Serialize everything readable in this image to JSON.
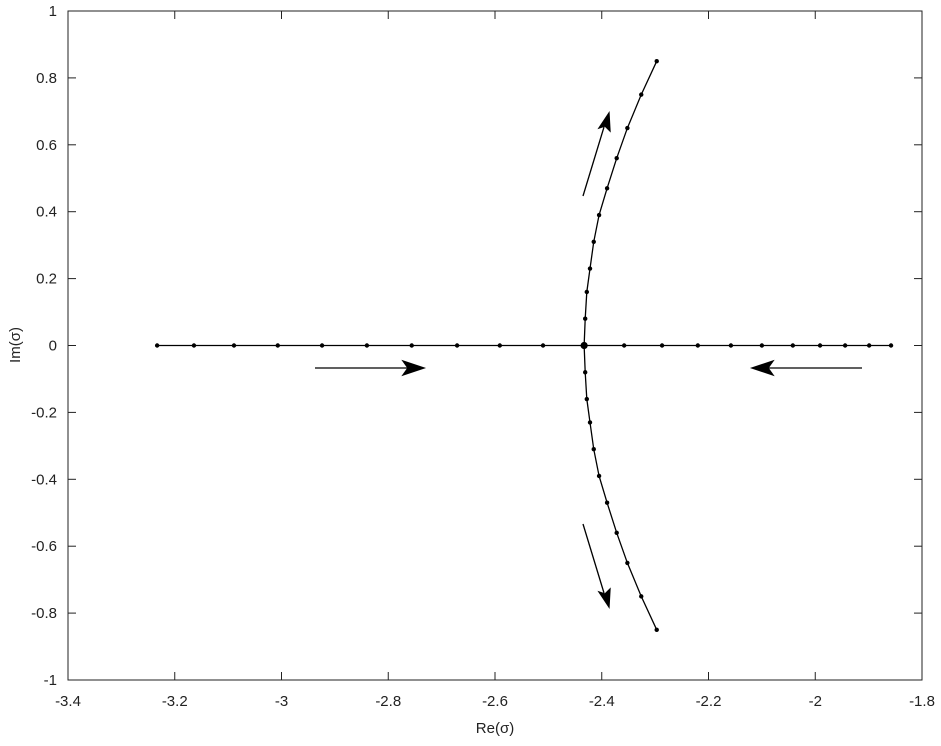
{
  "chart_data": {
    "type": "line",
    "xlabel": "Re(σ)",
    "ylabel": "Im(σ)",
    "xlim": [
      -3.4,
      -1.8
    ],
    "xticks": [
      -3.4,
      -3.2,
      -3,
      -2.8,
      -2.6,
      -2.4,
      -2.2,
      -2,
      -1.8
    ],
    "ylim": [
      -1,
      1
    ],
    "yticks": [
      -1,
      -0.8,
      -0.6,
      -0.4,
      -0.2,
      0,
      0.2,
      0.4,
      0.6,
      0.8,
      1
    ],
    "grid": false,
    "series": [
      {
        "color": "#000000",
        "x": [
          -3.233,
          -3.164,
          -3.089,
          -3.007,
          -2.924,
          -2.84,
          -2.756,
          -2.671,
          -2.591,
          -2.51,
          -2.433,
          -2.358,
          -2.287,
          -2.22,
          -2.158,
          -2.1,
          -2.042,
          -1.991,
          -1.944,
          -1.899,
          -1.858
        ],
        "values": [
          0,
          0,
          0,
          0,
          0,
          0,
          0,
          0,
          0,
          0,
          0,
          0,
          0,
          0,
          0,
          0,
          0,
          0,
          0,
          0,
          0
        ]
      },
      {
        "color": "#000000",
        "x": [
          -2.433,
          -2.431,
          -2.428,
          -2.422,
          -2.415,
          -2.405,
          -2.39,
          -2.372,
          -2.352,
          -2.326,
          -2.297
        ],
        "values": [
          0,
          0.08,
          0.16,
          0.23,
          0.31,
          0.39,
          0.47,
          0.56,
          0.65,
          0.75,
          0.85
        ]
      },
      {
        "color": "#000000",
        "x": [
          -2.433,
          -2.431,
          -2.428,
          -2.422,
          -2.415,
          -2.405,
          -2.39,
          -2.372,
          -2.352,
          -2.326,
          -2.297
        ],
        "values": [
          0,
          -0.08,
          -0.16,
          -0.23,
          -0.31,
          -0.39,
          -0.47,
          -0.56,
          -0.65,
          -0.75,
          -0.85
        ]
      }
    ]
  }
}
